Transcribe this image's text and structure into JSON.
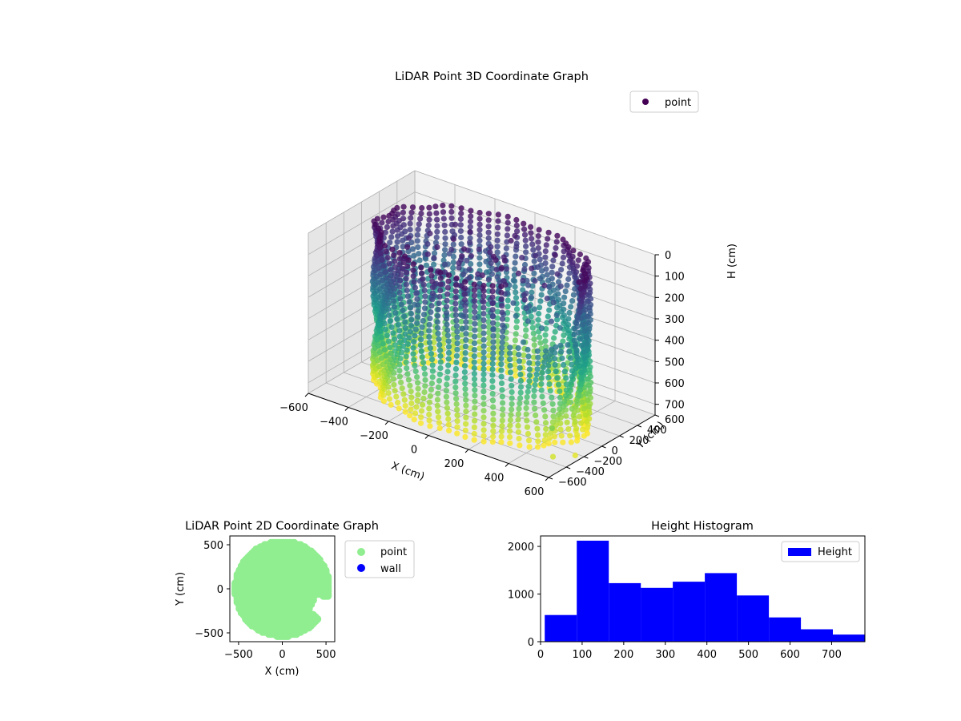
{
  "colors": {
    "axis": "#000000",
    "grid": "#b0b0b0",
    "pane_back": "#f2f2f2",
    "pane_side": "#e6e6e6",
    "pane_floor": "#ebebeb",
    "point_2d": "#90ee90",
    "wall_2d": "#0000ff",
    "hist_bar": "#0000ff",
    "legend_3d_marker": "#440154"
  },
  "chart_data": [
    {
      "type": "scatter",
      "projection": "3d",
      "title": "LiDAR Point 3D Coordinate Graph",
      "xlabel": "X (cm)",
      "ylabel": "Y (cm)",
      "zlabel": "H (cm)",
      "xlim": [
        -600,
        600
      ],
      "ylim": [
        -600,
        600
      ],
      "zlim": [
        0,
        750
      ],
      "z_inverted": true,
      "x_ticks": [
        -600,
        -400,
        -200,
        0,
        200,
        400,
        600
      ],
      "y_ticks": [
        -600,
        -400,
        -200,
        0,
        200,
        400,
        600
      ],
      "z_ticks": [
        0,
        100,
        200,
        300,
        400,
        500,
        600,
        700
      ],
      "colormap": "viridis",
      "legend": {
        "location": "upper-right",
        "entries": [
          "point"
        ]
      },
      "grid": true,
      "series": [
        {
          "name": "point",
          "shape": "cylinder",
          "center": [
            0,
            0
          ],
          "radius": 480,
          "columns": 72,
          "height_range": [
            20,
            750
          ],
          "open_gap_angle_deg": [
            -50,
            -20
          ]
        }
      ]
    },
    {
      "type": "scatter",
      "title": "LiDAR Point 2D Coordinate Graph",
      "xlabel": "X (cm)",
      "ylabel": "Y (cm)",
      "xlim": [
        -600,
        600
      ],
      "ylim": [
        -600,
        600
      ],
      "x_ticks": [
        -500,
        0,
        500
      ],
      "y_ticks": [
        -500,
        0,
        500
      ],
      "legend": {
        "location": "outside-right",
        "entries": [
          "point",
          "wall"
        ]
      },
      "series": [
        {
          "name": "point",
          "shape": "disk",
          "center": [
            0,
            0
          ],
          "radius": 540,
          "notch_angle_deg": [
            -40,
            -10
          ]
        },
        {
          "name": "wall",
          "points": []
        }
      ]
    },
    {
      "type": "bar",
      "subtype": "histogram",
      "title": "Height Histogram",
      "legend": {
        "location": "upper-right",
        "entries": [
          "Height"
        ]
      },
      "bin_edges": [
        10,
        87,
        164,
        241,
        318,
        395,
        472,
        549,
        626,
        703,
        780
      ],
      "values": [
        560,
        2120,
        1230,
        1130,
        1260,
        1440,
        970,
        510,
        260,
        150
      ],
      "xlim": [
        0,
        780
      ],
      "ylim": [
        0,
        2220
      ],
      "x_ticks": [
        0,
        100,
        200,
        300,
        400,
        500,
        600,
        700
      ],
      "y_ticks": [
        0,
        1000,
        2000
      ]
    }
  ]
}
